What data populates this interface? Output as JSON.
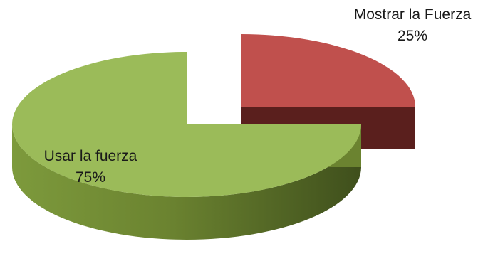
{
  "chart_data": {
    "type": "pie",
    "style": "3d-exploded",
    "slices": [
      {
        "label": "Usar la fuerza",
        "value": 75,
        "value_label": "75%",
        "color": "#9bbb59",
        "side_color": "#6b8330"
      },
      {
        "label": "Mostrar la Fuerza",
        "value": 25,
        "value_label": "25%",
        "color": "#c0504d",
        "side_color": "#5a1f1d"
      }
    ],
    "legend": "none"
  }
}
